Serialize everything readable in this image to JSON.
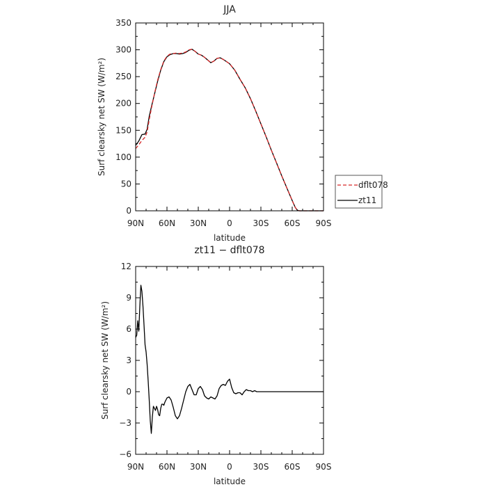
{
  "chart_data": [
    {
      "type": "line",
      "title": "JJA",
      "xlabel": "latitude",
      "ylabel": "Surf clearsky net SW (W/m²)",
      "xlim": [
        90,
        -90
      ],
      "ylim": [
        0,
        350
      ],
      "x_ticks": [
        90,
        60,
        30,
        0,
        -30,
        -60,
        -90
      ],
      "x_tick_labels": [
        "90N",
        "60N",
        "30N",
        "0",
        "30S",
        "60S",
        "90S"
      ],
      "y_ticks": [
        0,
        50,
        100,
        150,
        200,
        250,
        300,
        350
      ],
      "y_tick_labels": [
        "0",
        "50",
        "100",
        "150",
        "200",
        "250",
        "300",
        "350"
      ],
      "legend": "right",
      "series": [
        {
          "name": "dflt078",
          "color": "#d62728",
          "dash": "dashed",
          "x": [
            90,
            87,
            84,
            81,
            79,
            77,
            75,
            72,
            69,
            66,
            63,
            60,
            57,
            54,
            51,
            48,
            45,
            42,
            39,
            36,
            33,
            30,
            27,
            24,
            21,
            18,
            15,
            12,
            9,
            6,
            3,
            0,
            -5,
            -10,
            -15,
            -20,
            -25,
            -30,
            -35,
            -40,
            -45,
            -50,
            -55,
            -60,
            -63,
            -65,
            -67,
            -70,
            -75,
            -80,
            -85,
            -90
          ],
          "y": [
            116,
            123,
            131,
            137,
            147,
            170,
            190,
            218,
            243,
            263,
            279,
            288,
            292,
            293,
            294,
            293,
            294,
            296,
            300,
            301,
            297,
            292,
            290,
            286,
            281,
            276,
            279,
            284,
            285,
            282,
            278,
            274,
            262,
            245,
            229,
            209,
            186,
            162,
            138,
            113,
            89,
            65,
            42,
            19,
            6,
            1,
            0,
            0,
            0,
            0,
            0,
            0
          ]
        },
        {
          "name": "zt11",
          "color": "#000000",
          "dash": "solid",
          "x": [
            90,
            87,
            84,
            81,
            79,
            77,
            75,
            72,
            69,
            66,
            63,
            60,
            57,
            54,
            51,
            48,
            45,
            42,
            39,
            36,
            33,
            30,
            27,
            24,
            21,
            18,
            15,
            12,
            9,
            6,
            3,
            0,
            -5,
            -10,
            -15,
            -20,
            -25,
            -30,
            -35,
            -40,
            -45,
            -50,
            -55,
            -60,
            -63,
            -65,
            -67,
            -70,
            -75,
            -80,
            -85,
            -90
          ],
          "y": [
            122,
            130,
            142,
            143,
            152,
            176,
            193,
            217,
            241,
            262,
            278,
            287,
            291,
            293,
            293,
            292,
            293,
            295,
            299,
            301,
            297,
            292,
            290,
            286,
            281,
            276,
            279,
            284,
            285,
            282,
            278,
            274,
            262,
            245,
            229,
            209,
            186,
            162,
            138,
            113,
            89,
            65,
            42,
            19,
            6,
            1,
            0,
            0,
            0,
            0,
            0,
            0
          ]
        }
      ]
    },
    {
      "type": "line",
      "title": "zt11 − dflt078",
      "xlabel": "latitude",
      "ylabel": "Surf clearsky net SW (W/m²)",
      "xlim": [
        90,
        -90
      ],
      "ylim": [
        -6,
        12
      ],
      "x_ticks": [
        90,
        60,
        30,
        0,
        -30,
        -60,
        -90
      ],
      "x_tick_labels": [
        "90N",
        "60N",
        "30N",
        "0",
        "30S",
        "60S",
        "90S"
      ],
      "y_ticks": [
        -6,
        -3,
        0,
        3,
        6,
        9,
        12
      ],
      "y_tick_labels": [
        "−6",
        "−3",
        "0",
        "3",
        "6",
        "9",
        "12"
      ],
      "series": [
        {
          "color": "#000000",
          "x": [
            90,
            89,
            88,
            87,
            86,
            85,
            84,
            83,
            82,
            81,
            80,
            79,
            78,
            77,
            76,
            75,
            74,
            73,
            72,
            71,
            70,
            69,
            68,
            67,
            66,
            65,
            64,
            63,
            62,
            61,
            60,
            58,
            56,
            54,
            52,
            50,
            48,
            46,
            44,
            42,
            40,
            38,
            36,
            34,
            32,
            30,
            28,
            26,
            24,
            22,
            20,
            18,
            16,
            14,
            12,
            10,
            8,
            6,
            4,
            2,
            0,
            -2,
            -4,
            -6,
            -8,
            -10,
            -12,
            -14,
            -16,
            -18,
            -20,
            -22,
            -24,
            -26,
            -28,
            -30,
            -32,
            -34,
            -36,
            -38,
            -40,
            -42,
            -44,
            -46,
            -48,
            -50,
            -52,
            -55,
            -60,
            -65,
            -70,
            -75,
            -80,
            -85,
            -90
          ],
          "y": [
            5.2,
            5.4,
            6.8,
            5.8,
            8.2,
            10.2,
            9.6,
            8.2,
            6.4,
            4.5,
            3.8,
            2.6,
            1.0,
            -0.8,
            -2.8,
            -4.0,
            -2.4,
            -1.4,
            -1.6,
            -1.8,
            -1.4,
            -1.7,
            -2.2,
            -2.3,
            -1.6,
            -1.2,
            -1.2,
            -1.3,
            -1.0,
            -0.8,
            -0.6,
            -0.5,
            -0.8,
            -1.5,
            -2.3,
            -2.6,
            -2.3,
            -1.6,
            -0.8,
            0.0,
            0.5,
            0.7,
            0.2,
            -0.3,
            -0.3,
            0.3,
            0.5,
            0.2,
            -0.4,
            -0.6,
            -0.7,
            -0.5,
            -0.6,
            -0.7,
            -0.4,
            0.3,
            0.6,
            0.7,
            0.6,
            1.0,
            1.2,
            0.4,
            -0.1,
            -0.2,
            -0.1,
            -0.1,
            -0.3,
            0.0,
            0.2,
            0.1,
            0.1,
            0.0,
            0.1,
            0.0,
            0.0,
            0.0,
            0.0,
            0.0,
            0.0,
            0.0,
            0.0,
            0.0,
            0.0,
            0.0,
            0.0,
            0.0,
            0.0,
            0.0,
            0.0,
            0.0,
            0.0,
            0.0,
            0.0,
            0.0,
            0.0
          ]
        }
      ]
    }
  ]
}
